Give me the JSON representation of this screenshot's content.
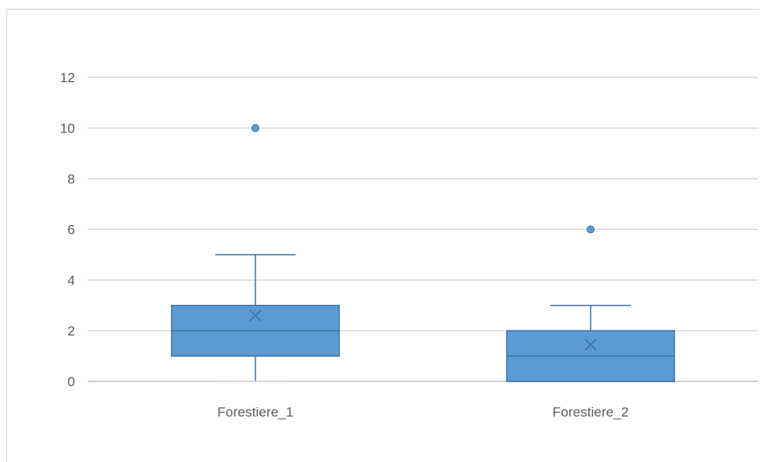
{
  "chart_data": {
    "type": "boxplot",
    "title": "",
    "xlabel": "",
    "ylabel": "",
    "ylim": [
      0,
      12
    ],
    "yticks": [
      0,
      2,
      4,
      6,
      8,
      10,
      12
    ],
    "grid": true,
    "legend": "none",
    "colors": {
      "box_fill": "#5b9bd5",
      "box_stroke": "#41719c",
      "grid": "#d9d9d9",
      "axis": "#bfbfbf"
    },
    "categories": [
      "Forestiere_1",
      "Forestiere_2"
    ],
    "boxes": [
      {
        "category": "Forestiere_1",
        "min": 0,
        "q1": 1,
        "median": 2,
        "q3": 3,
        "max": 5,
        "mean": 2.6,
        "outliers": [
          10
        ]
      },
      {
        "category": "Forestiere_2",
        "min": 0,
        "q1": 0,
        "median": 1,
        "q3": 2,
        "max": 3,
        "mean": 1.45,
        "outliers": [
          6
        ]
      }
    ]
  }
}
